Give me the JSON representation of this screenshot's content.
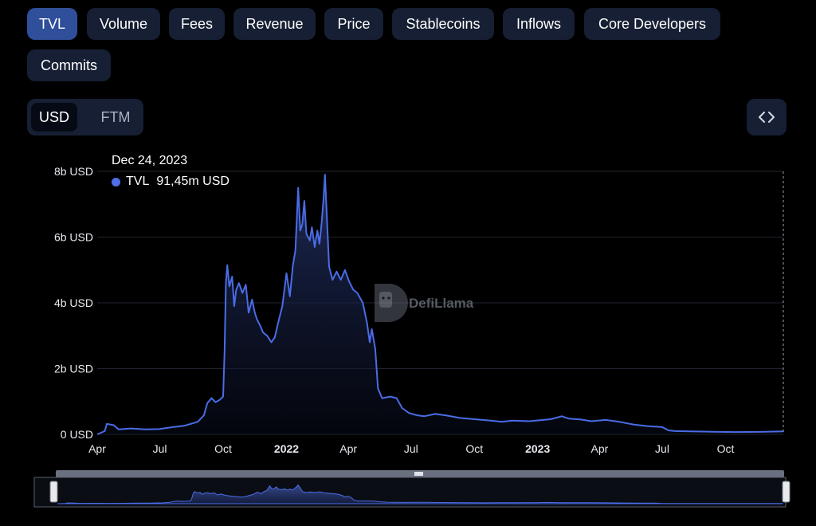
{
  "tabs": [
    {
      "label": "TVL",
      "active": true
    },
    {
      "label": "Volume",
      "active": false
    },
    {
      "label": "Fees",
      "active": false
    },
    {
      "label": "Revenue",
      "active": false
    },
    {
      "label": "Price",
      "active": false
    },
    {
      "label": "Stablecoins",
      "active": false
    },
    {
      "label": "Inflows",
      "active": false
    },
    {
      "label": "Core Developers",
      "active": false
    },
    {
      "label": "Commits",
      "active": false
    }
  ],
  "currency_toggle": {
    "options": [
      "USD",
      "FTM"
    ],
    "selected": "USD"
  },
  "embed_icon": "code-brackets-icon",
  "tooltip": {
    "date": "Dec 24, 2023",
    "series": "TVL",
    "value": "91,45m USD"
  },
  "watermark": {
    "text": "DefiLlama",
    "icon": "llama-logo-icon"
  },
  "colors": {
    "line": "#4a6ce6",
    "background": "#000000",
    "tab_active": "#2f4f9a",
    "tab": "#161f33"
  },
  "chart_data": {
    "type": "area",
    "series": [
      {
        "name": "TVL"
      }
    ],
    "y_ticks": [
      "0 USD",
      "2b USD",
      "4b USD",
      "6b USD",
      "8b USD"
    ],
    "ylim": [
      0,
      8000000000
    ],
    "x_ticks": [
      {
        "label": "Apr",
        "date": "2021-04-01",
        "bold": false
      },
      {
        "label": "Jul",
        "date": "2021-07-01",
        "bold": false
      },
      {
        "label": "Oct",
        "date": "2021-10-01",
        "bold": false
      },
      {
        "label": "2022",
        "date": "2022-01-01",
        "bold": true
      },
      {
        "label": "Apr",
        "date": "2022-04-01",
        "bold": false
      },
      {
        "label": "Jul",
        "date": "2022-07-01",
        "bold": false
      },
      {
        "label": "Oct",
        "date": "2022-10-01",
        "bold": false
      },
      {
        "label": "2023",
        "date": "2023-01-01",
        "bold": true
      },
      {
        "label": "Apr",
        "date": "2023-04-01",
        "bold": false
      },
      {
        "label": "Jul",
        "date": "2023-07-01",
        "bold": false
      },
      {
        "label": "Oct",
        "date": "2023-10-01",
        "bold": false
      }
    ],
    "xlim": [
      "2021-04-01",
      "2023-12-24"
    ],
    "grid": true,
    "points": [
      [
        "2021-04-01",
        0.0
      ],
      [
        "2021-04-12",
        0.1
      ],
      [
        "2021-04-15",
        0.32
      ],
      [
        "2021-04-25",
        0.28
      ],
      [
        "2021-05-02",
        0.15
      ],
      [
        "2021-05-20",
        0.18
      ],
      [
        "2021-06-10",
        0.15
      ],
      [
        "2021-06-30",
        0.16
      ],
      [
        "2021-07-20",
        0.22
      ],
      [
        "2021-08-05",
        0.26
      ],
      [
        "2021-08-25",
        0.38
      ],
      [
        "2021-09-03",
        0.58
      ],
      [
        "2021-09-08",
        0.95
      ],
      [
        "2021-09-14",
        1.1
      ],
      [
        "2021-09-20",
        0.98
      ],
      [
        "2021-09-26",
        1.05
      ],
      [
        "2021-10-01",
        1.15
      ],
      [
        "2021-10-03",
        2.5
      ],
      [
        "2021-10-05",
        4.6
      ],
      [
        "2021-10-07",
        5.15
      ],
      [
        "2021-10-10",
        4.5
      ],
      [
        "2021-10-14",
        4.8
      ],
      [
        "2021-10-17",
        3.9
      ],
      [
        "2021-10-20",
        4.4
      ],
      [
        "2021-10-24",
        4.6
      ],
      [
        "2021-10-29",
        4.3
      ],
      [
        "2021-11-03",
        4.55
      ],
      [
        "2021-11-07",
        3.7
      ],
      [
        "2021-11-12",
        4.1
      ],
      [
        "2021-11-16",
        3.7
      ],
      [
        "2021-11-19",
        3.5
      ],
      [
        "2021-11-24",
        3.3
      ],
      [
        "2021-11-28",
        3.1
      ],
      [
        "2021-12-04",
        3.0
      ],
      [
        "2021-12-10",
        2.8
      ],
      [
        "2021-12-15",
        2.95
      ],
      [
        "2021-12-20",
        3.4
      ],
      [
        "2021-12-26",
        3.9
      ],
      [
        "2022-01-01",
        4.9
      ],
      [
        "2022-01-06",
        4.2
      ],
      [
        "2022-01-10",
        5.1
      ],
      [
        "2022-01-14",
        5.6
      ],
      [
        "2022-01-18",
        7.5
      ],
      [
        "2022-01-21",
        6.2
      ],
      [
        "2022-01-24",
        6.4
      ],
      [
        "2022-01-27",
        7.1
      ],
      [
        "2022-01-30",
        6.1
      ],
      [
        "2022-02-04",
        5.9
      ],
      [
        "2022-02-07",
        6.3
      ],
      [
        "2022-02-11",
        5.7
      ],
      [
        "2022-02-15",
        6.2
      ],
      [
        "2022-02-18",
        5.8
      ],
      [
        "2022-02-21",
        6.4
      ],
      [
        "2022-02-24",
        7.2
      ],
      [
        "2022-02-26",
        7.9
      ],
      [
        "2022-03-01",
        6.5
      ],
      [
        "2022-03-04",
        5.1
      ],
      [
        "2022-03-09",
        4.7
      ],
      [
        "2022-03-15",
        4.95
      ],
      [
        "2022-03-21",
        4.7
      ],
      [
        "2022-03-27",
        5.0
      ],
      [
        "2022-04-02",
        4.65
      ],
      [
        "2022-04-08",
        4.4
      ],
      [
        "2022-04-14",
        4.3
      ],
      [
        "2022-04-22",
        4.0
      ],
      [
        "2022-04-28",
        3.4
      ],
      [
        "2022-05-02",
        2.8
      ],
      [
        "2022-05-05",
        3.2
      ],
      [
        "2022-05-10",
        2.6
      ],
      [
        "2022-05-14",
        1.4
      ],
      [
        "2022-05-20",
        1.1
      ],
      [
        "2022-06-01",
        1.15
      ],
      [
        "2022-06-10",
        1.1
      ],
      [
        "2022-06-18",
        0.8
      ],
      [
        "2022-06-28",
        0.65
      ],
      [
        "2022-07-10",
        0.58
      ],
      [
        "2022-07-20",
        0.55
      ],
      [
        "2022-08-05",
        0.62
      ],
      [
        "2022-08-20",
        0.58
      ],
      [
        "2022-09-10",
        0.5
      ],
      [
        "2022-10-01",
        0.46
      ],
      [
        "2022-10-25",
        0.42
      ],
      [
        "2022-11-10",
        0.38
      ],
      [
        "2022-11-25",
        0.42
      ],
      [
        "2022-12-20",
        0.4
      ],
      [
        "2023-01-20",
        0.46
      ],
      [
        "2023-02-05",
        0.55
      ],
      [
        "2023-02-15",
        0.48
      ],
      [
        "2023-03-05",
        0.45
      ],
      [
        "2023-03-20",
        0.4
      ],
      [
        "2023-04-10",
        0.44
      ],
      [
        "2023-04-30",
        0.38
      ],
      [
        "2023-05-20",
        0.3
      ],
      [
        "2023-06-10",
        0.25
      ],
      [
        "2023-07-01",
        0.22
      ],
      [
        "2023-07-10",
        0.12
      ],
      [
        "2023-07-20",
        0.1
      ],
      [
        "2023-08-10",
        0.09
      ],
      [
        "2023-09-10",
        0.08
      ],
      [
        "2023-10-15",
        0.07
      ],
      [
        "2023-11-20",
        0.075
      ],
      [
        "2023-12-24",
        0.0915
      ]
    ],
    "point_units": "billions USD",
    "cursor_date": "2023-12-24"
  }
}
